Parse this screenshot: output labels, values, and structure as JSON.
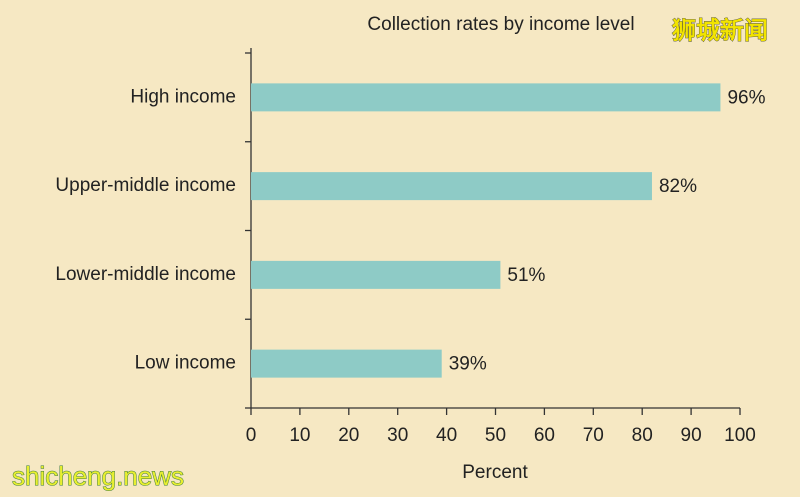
{
  "chart_data": {
    "type": "hbar",
    "title": "Collection rates by income level",
    "categories": [
      "High income",
      "Upper-middle income",
      "Lower-middle income",
      "Low income"
    ],
    "values": [
      96,
      82,
      51,
      39
    ],
    "value_labels": [
      "96%",
      "82%",
      "51%",
      "39%"
    ],
    "color": "#8ecbc6",
    "xlabel": "Percent",
    "xlim": [
      0,
      100
    ],
    "xticks": [
      0,
      10,
      20,
      30,
      40,
      50,
      60,
      70,
      80,
      90,
      100
    ]
  },
  "watermarks": {
    "top_right": "狮城新闻",
    "bottom_left": "shicheng.news"
  }
}
